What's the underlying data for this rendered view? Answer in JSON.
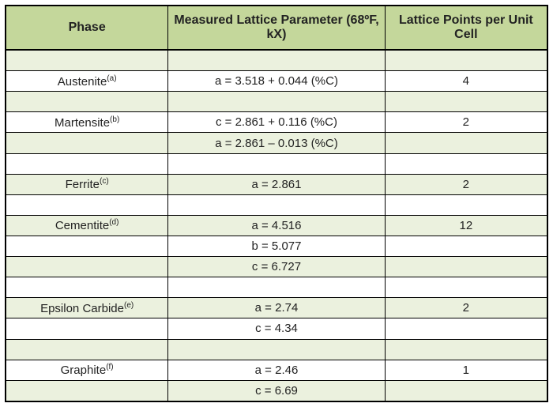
{
  "headers": {
    "phase": "Phase",
    "param": "Measured Lattice Parameter (68ºF, kX)",
    "points": "Lattice Points per Unit Cell"
  },
  "rows": [
    {
      "type": "spacer-tint"
    },
    {
      "type": "data-white",
      "phase": "Austenite",
      "sup": "(a)",
      "param": "a = 3.518 + 0.044 (%C)",
      "points": "4"
    },
    {
      "type": "spacer-tint"
    },
    {
      "type": "data-white",
      "phase": "Martensite",
      "sup": "(b)",
      "param": "c = 2.861 + 0.116 (%C)",
      "points": "2"
    },
    {
      "type": "data-tint",
      "phase": "",
      "sup": "",
      "param": "a = 2.861 – 0.013 (%C)",
      "points": ""
    },
    {
      "type": "spacer-white"
    },
    {
      "type": "data-tint",
      "phase": "Ferrite",
      "sup": "(c)",
      "param": "a = 2.861",
      "points": "2"
    },
    {
      "type": "spacer-white"
    },
    {
      "type": "data-tint",
      "phase": "Cementite",
      "sup": "(d)",
      "param": "a = 4.516",
      "points": "12"
    },
    {
      "type": "data-white",
      "phase": "",
      "sup": "",
      "param": "b = 5.077",
      "points": ""
    },
    {
      "type": "data-tint",
      "phase": "",
      "sup": "",
      "param": "c = 6.727",
      "points": ""
    },
    {
      "type": "spacer-white"
    },
    {
      "type": "data-tint",
      "phase": "Epsilon Carbide",
      "sup": "(e)",
      "param": "a = 2.74",
      "points": "2"
    },
    {
      "type": "data-white",
      "phase": "",
      "sup": "",
      "param": "c = 4.34",
      "points": ""
    },
    {
      "type": "spacer-tint"
    },
    {
      "type": "data-white",
      "phase": "Graphite",
      "sup": "(f)",
      "param": "a = 2.46",
      "points": "1"
    },
    {
      "type": "data-tint",
      "phase": "",
      "sup": "",
      "param": "c = 6.69",
      "points": ""
    }
  ],
  "colors": {
    "header_bg": "#c4d79b",
    "tint_bg": "#ebf1de",
    "white_bg": "#ffffff",
    "border": "#000000"
  }
}
